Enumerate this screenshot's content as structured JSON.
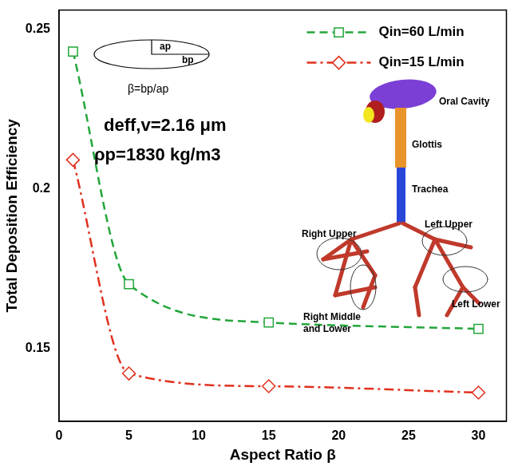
{
  "chart_data": {
    "type": "line",
    "x_label": "Aspect Ratio β",
    "y_label": "Total Deposition Efficiency",
    "x": [
      1,
      5,
      15,
      30
    ],
    "series": [
      {
        "name": "Qin=60 L/min",
        "color": "#22a63a",
        "values": [
          0.243,
          0.17,
          0.158,
          0.156
        ],
        "marker": "square",
        "line_style": "dashed"
      },
      {
        "name": "Qin=15 L/min",
        "color": "#e0301e",
        "values": [
          0.209,
          0.142,
          0.138,
          0.136
        ],
        "marker": "diamond",
        "line_style": "dashdot"
      }
    ],
    "xlim": [
      0,
      32
    ],
    "xticks": [
      0,
      5,
      10,
      15,
      20,
      25,
      30
    ],
    "ylim": [
      0.127,
      0.256
    ],
    "yticks": [
      0.15,
      0.2,
      0.25
    ],
    "grid": false,
    "legend": "upper right",
    "annotations": [
      "ap",
      "bp",
      "β=bp/ap",
      "deff,v=2.16 μm",
      "ρp=1830 kg/m3",
      "Oral Cavity",
      "Glottis",
      "Trachea",
      "Right Upper",
      "Left Upper",
      "Right Middle and Lower",
      "Left Lower"
    ]
  }
}
